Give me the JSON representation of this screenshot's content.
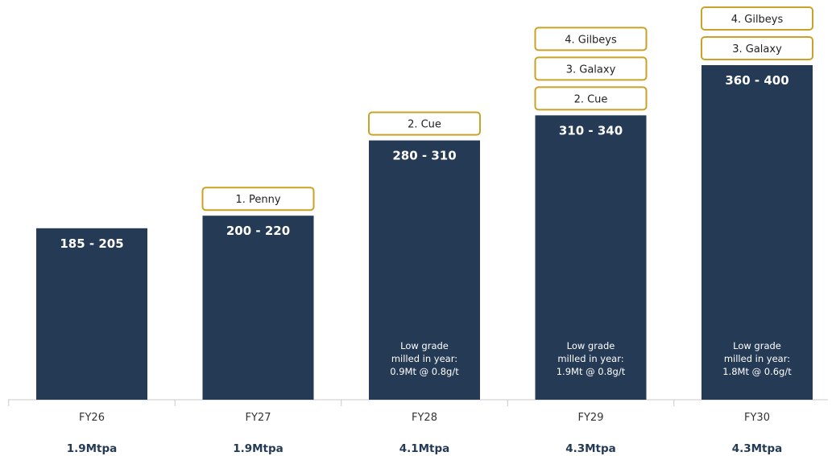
{
  "chart_data": {
    "type": "bar",
    "title": "",
    "xlabel": "",
    "ylabel": "",
    "categories": [
      "FY26",
      "FY27",
      "FY28",
      "FY29",
      "FY30"
    ],
    "capacities": [
      "1.9Mtpa",
      "1.9Mtpa",
      "4.1Mtpa",
      "4.3Mtpa",
      "4.3Mtpa"
    ],
    "range_labels": [
      "185 - 205",
      "200  - 220",
      "280 - 310",
      "310 - 340",
      "360 - 400"
    ],
    "low": [
      185,
      200,
      280,
      310,
      360
    ],
    "high": [
      205,
      220,
      310,
      340,
      400
    ],
    "ylim": [
      0,
      420
    ],
    "grid": false,
    "annotations": [
      [],
      [
        "1. Penny"
      ],
      [
        "2. Cue"
      ],
      [
        "2. Cue",
        "3. Galaxy",
        "4. Gilbeys"
      ],
      [
        "3. Galaxy",
        "4. Gilbeys"
      ]
    ],
    "notes": [
      [],
      [],
      [
        "Low grade",
        "milled in year:",
        "0.9Mt @ 0.8g/t"
      ],
      [
        "Low grade",
        "milled in year:",
        "1.9Mt @ 0.8g/t"
      ],
      [
        "Low grade",
        "milled in year:",
        "1.8Mt @ 0.6g/t"
      ]
    ]
  },
  "colors": {
    "bar": "#243A55",
    "tag_border": "#C9A227",
    "axis": "#C8C8C8",
    "caption": "#243A55"
  }
}
